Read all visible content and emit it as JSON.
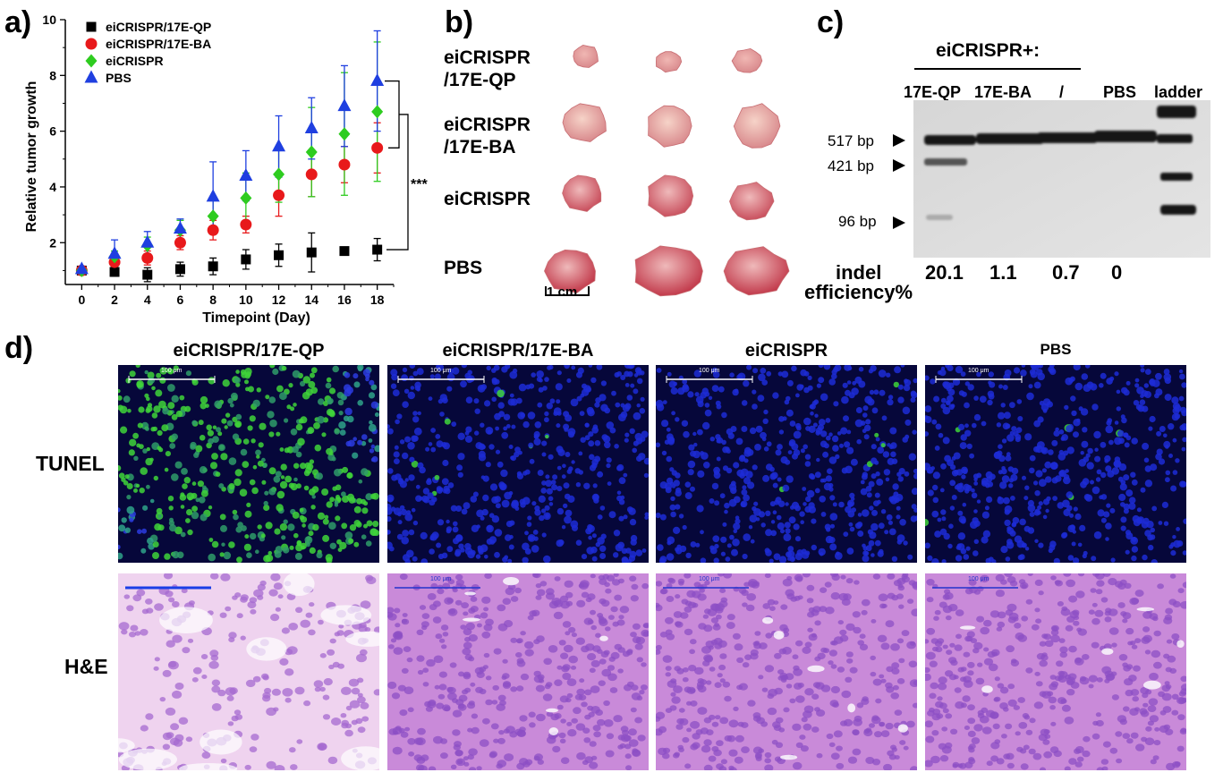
{
  "panels": {
    "a": "a)",
    "b": "b)",
    "c": "c)",
    "d": "d)"
  },
  "chart_data": {
    "type": "scatter",
    "xlabel": "Timepoint (Day)",
    "ylabel": "Relative tumor growth",
    "xlim": [
      -1,
      19
    ],
    "ylim": [
      0.5,
      10
    ],
    "xticks": [
      0,
      2,
      4,
      6,
      8,
      10,
      12,
      14,
      16,
      18
    ],
    "yticks": [
      2,
      4,
      6,
      8,
      10
    ],
    "legend_position": "top-left",
    "grid": false,
    "significance": "***",
    "series": [
      {
        "name": "eiCRISPR/17E-QP",
        "marker": "square",
        "color": "#000000",
        "x": [
          0,
          2,
          4,
          6,
          8,
          10,
          12,
          14,
          16,
          18
        ],
        "y": [
          1.0,
          0.95,
          0.85,
          1.05,
          1.15,
          1.4,
          1.55,
          1.65,
          1.7,
          1.75
        ],
        "err": [
          0.1,
          0.15,
          0.25,
          0.25,
          0.3,
          0.35,
          0.4,
          0.7,
          0.1,
          0.4
        ]
      },
      {
        "name": "eiCRISPR/17E-BA",
        "marker": "circle",
        "color": "#e8191b",
        "x": [
          0,
          2,
          4,
          6,
          8,
          10,
          12,
          14,
          16,
          18
        ],
        "y": [
          1.0,
          1.3,
          1.45,
          2.0,
          2.45,
          2.65,
          3.7,
          4.45,
          4.8,
          5.4
        ],
        "err": [
          0.1,
          0.2,
          0.25,
          0.25,
          0.35,
          0.3,
          0.75,
          0.8,
          0.65,
          0.9
        ]
      },
      {
        "name": "eiCRISPR",
        "marker": "diamond",
        "color": "#2ecc1f",
        "x": [
          0,
          2,
          4,
          6,
          8,
          10,
          12,
          14,
          16,
          18
        ],
        "y": [
          1.0,
          1.5,
          1.9,
          2.45,
          2.95,
          3.6,
          4.45,
          5.25,
          5.9,
          6.7
        ],
        "err": [
          0.1,
          0.2,
          0.3,
          0.35,
          0.6,
          0.9,
          1.0,
          1.6,
          2.2,
          2.5
        ]
      },
      {
        "name": "PBS",
        "marker": "triangle",
        "color": "#1f3fe0",
        "x": [
          0,
          2,
          4,
          6,
          8,
          10,
          12,
          14,
          16,
          18
        ],
        "y": [
          1.05,
          1.6,
          2.0,
          2.5,
          3.65,
          4.4,
          5.45,
          6.1,
          6.9,
          7.8
        ],
        "err": [
          0.1,
          0.5,
          0.4,
          0.35,
          1.25,
          0.9,
          1.1,
          1.1,
          1.45,
          1.8
        ]
      }
    ]
  },
  "panel_b": {
    "row_labels": [
      "eiCRISPR\n/17E-QP",
      "eiCRISPR\n/17E-BA",
      "eiCRISPR",
      "PBS"
    ],
    "scale_bar": "1 cm"
  },
  "panel_c": {
    "group_label": "eiCRISPR+:",
    "lanes": [
      "17E-QP",
      "17E-BA",
      "/",
      "PBS",
      "ladder"
    ],
    "bands": [
      "517 bp",
      "421 bp",
      "96 bp"
    ],
    "indel_label_1": "indel",
    "indel_label_2": "efficiency%",
    "indel_values": [
      "20.1",
      "1.1",
      "0.7",
      "0"
    ]
  },
  "panel_d": {
    "columns": [
      "eiCRISPR/17E-QP",
      "eiCRISPR/17E-BA",
      "eiCRISPR",
      "PBS"
    ],
    "rows": [
      "TUNEL",
      "H&E"
    ],
    "scale_label": "100 μm"
  },
  "colors": {
    "tunel_bg": "#06073a",
    "nuclei": "#1d2cd6",
    "tunel_green": "#3fd43a",
    "he_bg": "#e7bfe6",
    "he_cell": "#8c4fc4",
    "gel_bg": "#dcdcdc",
    "band": "#141414"
  }
}
